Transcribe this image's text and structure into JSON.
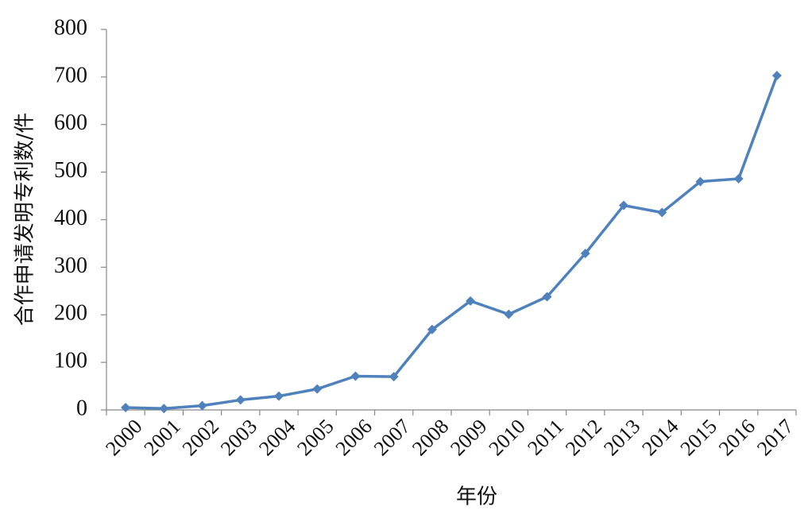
{
  "chart_data": {
    "type": "line",
    "x_label": "年份",
    "y_label": "合作申请发明专利数/件",
    "categories": [
      "2000",
      "2001",
      "2002",
      "2003",
      "2004",
      "2005",
      "2006",
      "2007",
      "2008",
      "2009",
      "2010",
      "2011",
      "2012",
      "2013",
      "2014",
      "2015",
      "2016",
      "2017"
    ],
    "values": [
      5,
      3,
      9,
      21,
      29,
      44,
      71,
      70,
      169,
      229,
      201,
      238,
      329,
      430,
      415,
      480,
      486,
      703
    ],
    "color": "#4f81bd",
    "marker": "diamond",
    "ylim": [
      0,
      800
    ],
    "yticks": [
      0,
      100,
      200,
      300,
      400,
      500,
      600,
      700,
      800
    ],
    "grid": false
  }
}
